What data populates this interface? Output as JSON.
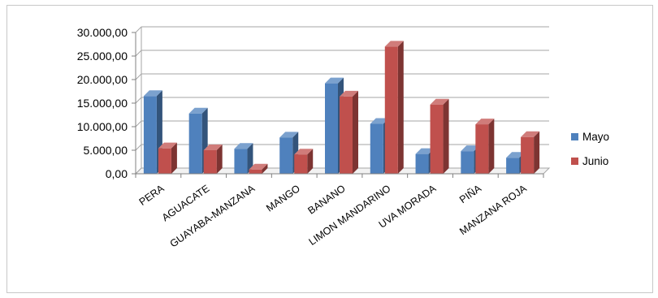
{
  "chart_data": {
    "type": "bar",
    "title": "",
    "xlabel": "",
    "ylabel": "",
    "ylim": [
      0,
      30000
    ],
    "yticks": [
      0,
      5000,
      10000,
      15000,
      20000,
      25000,
      30000
    ],
    "ytick_labels": [
      "0,00",
      "5.000,00",
      "10.000,00",
      "15.000,00",
      "20.000,00",
      "25.000,00",
      "30.000,00"
    ],
    "categories": [
      "PERA",
      "AGUACATE",
      "GUAYABA-MANZANA",
      "MANGO",
      "BANANO",
      "LIMON MANDARINO",
      "UVA MORADA",
      "PIÑA",
      "MANZANA ROJA"
    ],
    "series": [
      {
        "name": "Mayo",
        "color": "#4f81bd",
        "values": [
          16500,
          12800,
          5300,
          7700,
          19200,
          10600,
          4200,
          4800,
          3400
        ]
      },
      {
        "name": "Junio",
        "color": "#c0504d",
        "values": [
          5400,
          5000,
          900,
          4100,
          16400,
          27000,
          14700,
          10500,
          7800
        ]
      }
    ],
    "grid": true,
    "bar_style": "3d-clustered",
    "legend": {
      "placement": "right",
      "entries": [
        "Mayo",
        "Junio"
      ]
    }
  }
}
